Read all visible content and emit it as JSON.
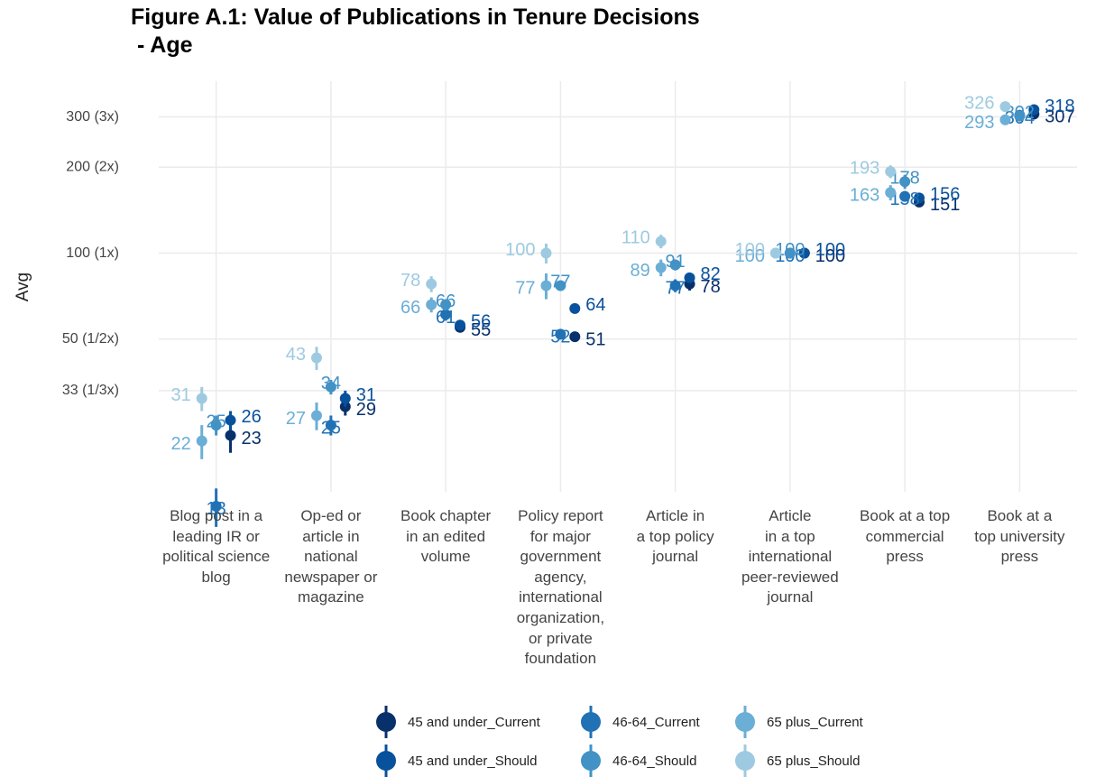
{
  "chart_data": {
    "type": "dot",
    "title": "Figure A.1: Value of Publications in Tenure Decisions\n - Age",
    "y_label": "Avg",
    "log_scale": true,
    "grid": true,
    "legend_position": "bottom",
    "categories": [
      "Blog post in a\nleading IR or\npolitical science\nblog",
      "Op-ed or\narticle in\nnational\nnewspaper or\nmagazine",
      "Book chapter\nin an edited\nvolume",
      "Policy report\nfor major\ngovernment\nagency,\ninternational\norganization,\nor private\nfoundation",
      "Article in\na top policy\njournal",
      "Article\nin a top\ninternational\npeer-reviewed\njournal",
      "Book at a top\ncommercial\npress",
      "Book at a\ntop university\npress"
    ],
    "ylim": [
      14.6,
      400
    ],
    "yticks": [
      {
        "value": 33,
        "label": "33 (1/3x)"
      },
      {
        "value": 50,
        "label": "50 (1/2x)"
      },
      {
        "value": 100,
        "label": "100 (1x)"
      },
      {
        "value": 200,
        "label": "200 (2x)"
      },
      {
        "value": 300,
        "label": "300 (3x)"
      }
    ],
    "series": [
      {
        "name": "45 and under_Current",
        "color": "#08306b",
        "values": [
          23,
          29,
          55,
          51,
          78,
          100,
          151,
          307
        ],
        "errors": [
          3,
          2,
          2,
          2,
          4,
          0,
          5,
          8
        ]
      },
      {
        "name": "45 and under_Should",
        "color": "#08519c",
        "values": [
          26,
          31,
          56,
          64,
          82,
          100,
          156,
          318
        ],
        "errors": [
          2,
          2,
          2,
          2,
          3,
          0,
          5,
          8
        ]
      },
      {
        "name": "46-64_Current",
        "color": "#2171b5",
        "values": [
          13,
          25,
          61,
          52,
          77,
          100,
          158,
          304
        ],
        "errors": [
          2,
          2,
          3,
          2,
          4,
          0,
          6,
          8
        ]
      },
      {
        "name": "46-64_Should",
        "color": "#4292c6",
        "values": [
          25,
          34,
          66,
          77,
          91,
          100,
          178,
          302
        ],
        "errors": [
          2,
          2,
          3,
          3,
          4,
          0,
          10,
          8
        ]
      },
      {
        "name": "65 plus_Current",
        "color": "#6baed6",
        "values": [
          22,
          27,
          66,
          77,
          89,
          100,
          163,
          293
        ],
        "errors": [
          3,
          3,
          4,
          8,
          6,
          0,
          10,
          12
        ]
      },
      {
        "name": "65 plus_Should",
        "color": "#9ecae1",
        "values": [
          31,
          43,
          78,
          100,
          110,
          100,
          193,
          326
        ],
        "errors": [
          3,
          4,
          5,
          8,
          6,
          0,
          10,
          12
        ]
      }
    ]
  }
}
